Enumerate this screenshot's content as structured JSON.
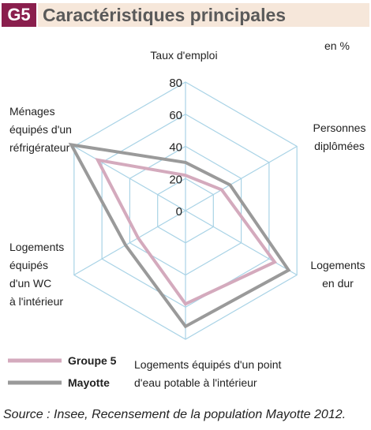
{
  "header": {
    "badge": "G5",
    "title": "Caractéristiques principales"
  },
  "unit": "en %",
  "source": "Source : Insee, Recensement de la population Mayotte 2012.",
  "colors": {
    "groupe5": "#d4aabd",
    "mayotte": "#9a9a9a",
    "grid": "#a9d3e6",
    "badge": "#8a1f4d",
    "title_bg": "#f6e7da"
  },
  "chart_data": {
    "type": "radar",
    "title": "Caractéristiques principales",
    "unit": "en %",
    "rmax": 80,
    "ticks": [
      0,
      20,
      40,
      60,
      80
    ],
    "axes": [
      [
        "Taux d'emploi"
      ],
      [
        "Personnes",
        "diplômées"
      ],
      [
        "Logements",
        "en dur"
      ],
      [
        "Logements équipés d'un point",
        "d'eau potable à l'intérieur"
      ],
      [
        "Logements",
        "équipés",
        "d'un WC",
        "à l'intérieur"
      ],
      [
        "Ménages",
        "équipés d'un",
        "réfrigérateur"
      ]
    ],
    "series": [
      {
        "name": "Groupe 5",
        "values": [
          22,
          26,
          64,
          58,
          34,
          63
        ]
      },
      {
        "name": "Mayotte",
        "values": [
          30,
          32,
          74,
          72,
          43,
          82
        ]
      }
    ]
  }
}
